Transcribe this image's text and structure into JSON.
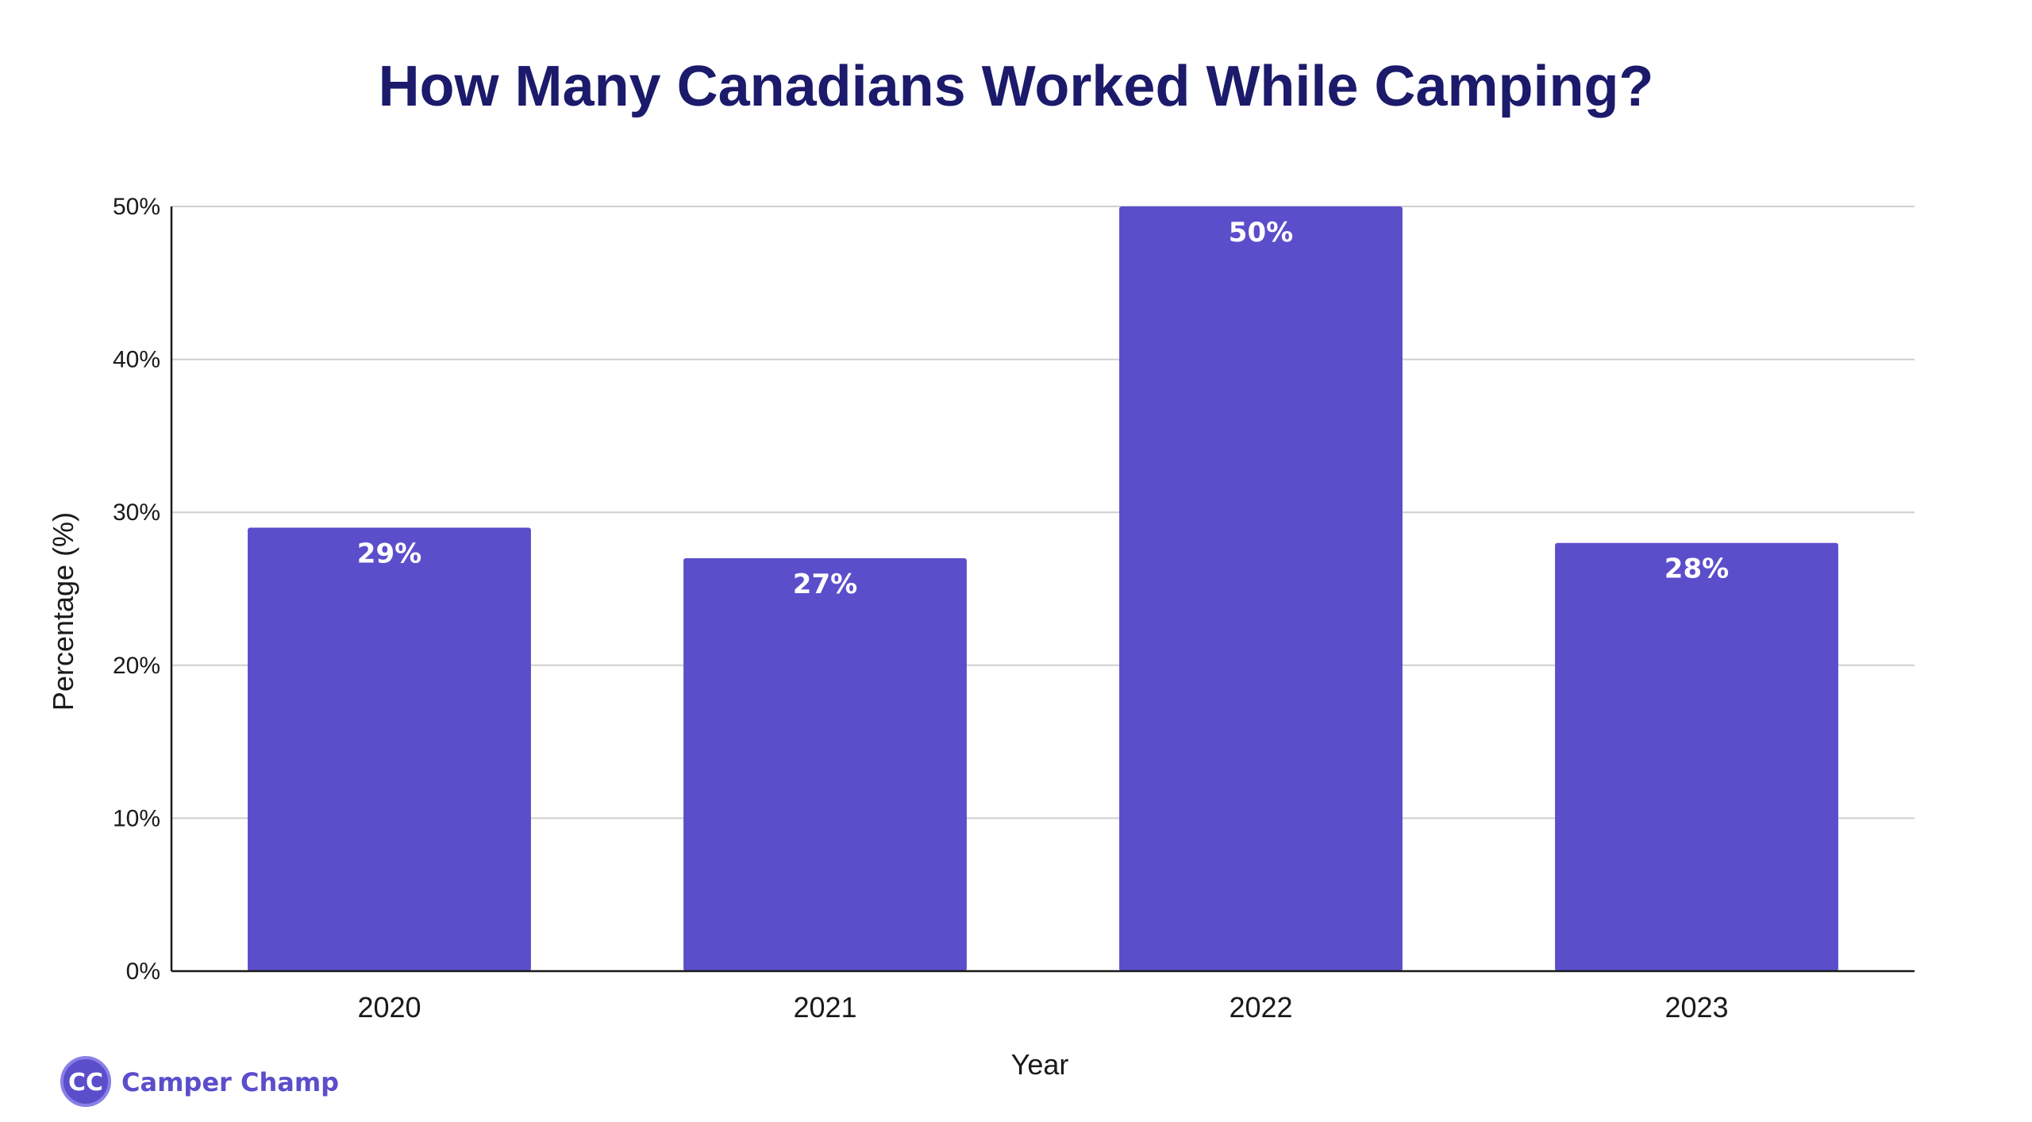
{
  "colors": {
    "bar": "#5b4ecb",
    "title": "#1b1a6b",
    "grid": "#cfcfcf",
    "axis": "#1a1a1a",
    "brand": "#5b4ecb"
  },
  "brand": {
    "logo_text": "CC",
    "name": "Camper Champ"
  },
  "chart_data": {
    "type": "bar",
    "title": "How Many Canadians Worked While Camping?",
    "xlabel": "Year",
    "ylabel": "Percentage (%)",
    "categories": [
      "2020",
      "2021",
      "2022",
      "2023"
    ],
    "values": [
      29,
      27,
      50,
      28
    ],
    "data_labels": [
      "29%",
      "27%",
      "50%",
      "28%"
    ],
    "yticks": [
      0,
      10,
      20,
      30,
      40,
      50
    ],
    "ytick_labels": [
      "0%",
      "10%",
      "20%",
      "30%",
      "40%",
      "50%"
    ],
    "ylim": [
      0,
      50
    ],
    "grid": true,
    "legend": "none"
  }
}
